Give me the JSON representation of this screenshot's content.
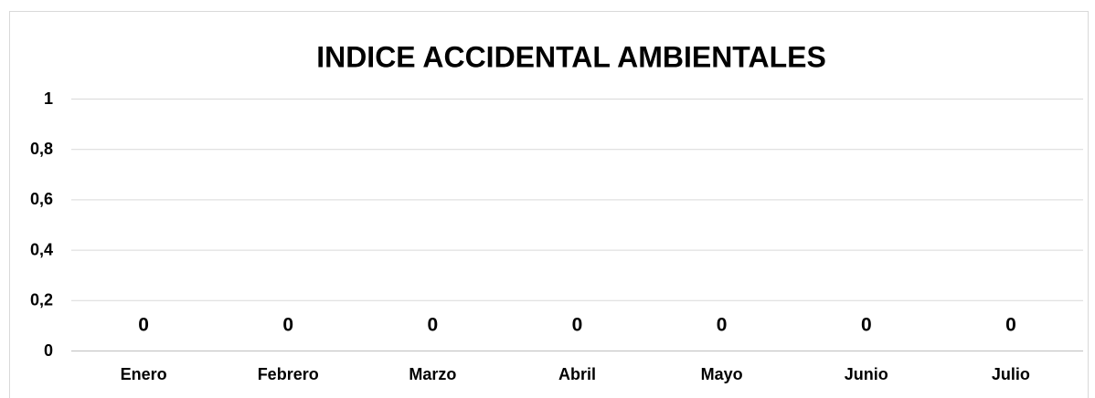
{
  "chart_data": {
    "type": "bar",
    "title": "INDICE ACCIDENTAL AMBIENTALES",
    "categories": [
      "Enero",
      "Febrero",
      "Marzo",
      "Abril",
      "Mayo",
      "Junio",
      "Julio"
    ],
    "values": [
      0,
      0,
      0,
      0,
      0,
      0,
      0
    ],
    "ylim": [
      0,
      1
    ],
    "yticks": [
      0,
      {
        "value": 0.2,
        "label": "0,2"
      },
      {
        "value": 0.4,
        "label": "0,4"
      },
      {
        "value": 0.6,
        "label": "0,6"
      },
      {
        "value": 0.8,
        "label": "0,8"
      },
      1
    ],
    "grid": true
  }
}
